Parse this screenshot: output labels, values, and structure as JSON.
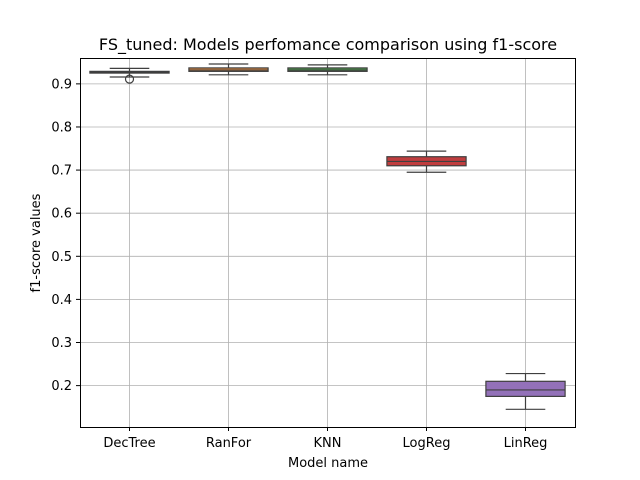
{
  "chart_data": {
    "type": "box",
    "title": "FS_tuned: Models perfomance comparison using f1-score",
    "xlabel": "Model name",
    "ylabel": "f1-score values",
    "ylim": [
      0.104,
      0.96
    ],
    "yticks": [
      "0.2",
      "0.3",
      "0.4",
      "0.5",
      "0.6",
      "0.7",
      "0.8",
      "0.9"
    ],
    "grid": true,
    "categories": [
      "DecTree",
      "RanFor",
      "KNN",
      "LogReg",
      "LinReg"
    ],
    "boxes": [
      {
        "name": "DecTree",
        "color": "#3a72a8",
        "whisker_low": 0.916,
        "q1": 0.925,
        "median": 0.927,
        "q3": 0.929,
        "whisker_high": 0.936,
        "outliers": [
          0.911
        ]
      },
      {
        "name": "RanFor",
        "color": "#e0893f",
        "whisker_low": 0.921,
        "q1": 0.929,
        "median": 0.932,
        "q3": 0.937,
        "whisker_high": 0.946,
        "outliers": []
      },
      {
        "name": "KNN",
        "color": "#4a9a4a",
        "whisker_low": 0.921,
        "q1": 0.929,
        "median": 0.932,
        "q3": 0.937,
        "whisker_high": 0.944,
        "outliers": []
      },
      {
        "name": "LogReg",
        "color": "#c03d3e",
        "whisker_low": 0.695,
        "q1": 0.71,
        "median": 0.72,
        "q3": 0.731,
        "whisker_high": 0.744,
        "outliers": []
      },
      {
        "name": "LinReg",
        "color": "#9371b9",
        "whisker_low": 0.145,
        "q1": 0.175,
        "median": 0.19,
        "q3": 0.21,
        "whisker_high": 0.228,
        "outliers": []
      }
    ]
  }
}
